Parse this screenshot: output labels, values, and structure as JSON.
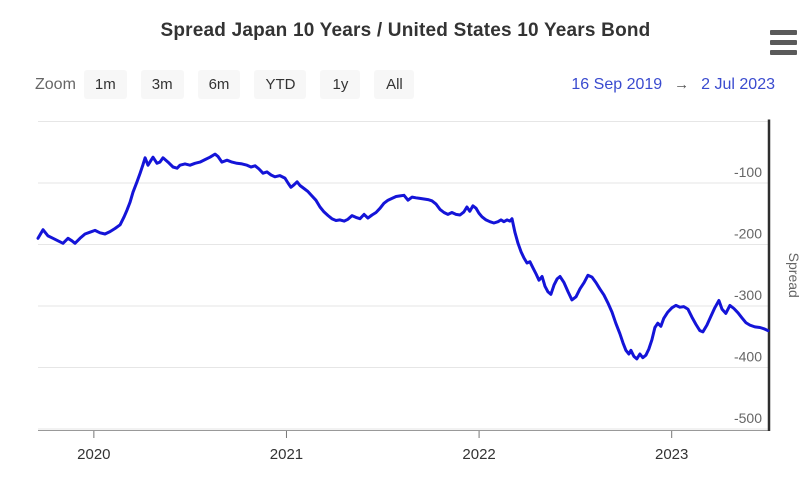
{
  "header": {
    "title": "Spread Japan 10 Years / United States 10 Years Bond"
  },
  "menu": {
    "icon": "hamburger-icon"
  },
  "controls": {
    "zoom_label": "Zoom",
    "buttons": [
      "1m",
      "3m",
      "6m",
      "YTD",
      "1y",
      "All"
    ],
    "range": {
      "from": "16 Sep 2019",
      "arrow": "→",
      "to": "2 Jul 2023"
    }
  },
  "colors": {
    "line": "#1414d8",
    "grid": "#e6e6e6",
    "y_axis_line": "#2e2e2e",
    "x_axis_line": "#999999",
    "tick": "#777777",
    "y_label": "#666666",
    "x_label": "#333333",
    "axis_title": "#666666",
    "date_link": "#3a4bcf"
  },
  "chart_data": {
    "type": "line",
    "title": "Spread Japan 10 Years / United States 10 Years Bond",
    "series_name": "Spread",
    "yaxis_title": "Spread",
    "xlabel": "",
    "ylabel": "Spread",
    "legend": false,
    "grid": true,
    "xlim": [
      2019.71,
      2023.5
    ],
    "ylim": [
      -500,
      0
    ],
    "ygrid": [
      0,
      -100,
      -200,
      -300,
      -400,
      -500
    ],
    "yticks": [
      {
        "value": -100,
        "label": "-100"
      },
      {
        "value": -200,
        "label": "-200"
      },
      {
        "value": -300,
        "label": "-300"
      },
      {
        "value": -400,
        "label": "-400"
      },
      {
        "value": -500,
        "label": "-500"
      }
    ],
    "xticks": [
      {
        "value": 2020,
        "label": "2020"
      },
      {
        "value": 2021,
        "label": "2021"
      },
      {
        "value": 2022,
        "label": "2022"
      },
      {
        "value": 2023,
        "label": "2023"
      }
    ],
    "points": [
      [
        2019.71,
        -190
      ],
      [
        2019.736,
        -176
      ],
      [
        2019.762,
        -186
      ],
      [
        2019.788,
        -190
      ],
      [
        2019.814,
        -194
      ],
      [
        2019.84,
        -198
      ],
      [
        2019.866,
        -190
      ],
      [
        2019.886,
        -194
      ],
      [
        2019.902,
        -198
      ],
      [
        2019.928,
        -190
      ],
      [
        2019.954,
        -183
      ],
      [
        2019.98,
        -180
      ],
      [
        2020.006,
        -177
      ],
      [
        2020.032,
        -181
      ],
      [
        2020.058,
        -183
      ],
      [
        2020.084,
        -179
      ],
      [
        2020.11,
        -174
      ],
      [
        2020.136,
        -168
      ],
      [
        2020.157,
        -155
      ],
      [
        2020.172,
        -144
      ],
      [
        2020.188,
        -131
      ],
      [
        2020.203,
        -115
      ],
      [
        2020.224,
        -98
      ],
      [
        2020.24,
        -84
      ],
      [
        2020.255,
        -70
      ],
      [
        2020.266,
        -59
      ],
      [
        2020.281,
        -71
      ],
      [
        2020.297,
        -63
      ],
      [
        2020.307,
        -58
      ],
      [
        2020.328,
        -68
      ],
      [
        2020.343,
        -66
      ],
      [
        2020.359,
        -59
      ],
      [
        2020.385,
        -66
      ],
      [
        2020.411,
        -74
      ],
      [
        2020.432,
        -76
      ],
      [
        2020.447,
        -71
      ],
      [
        2020.473,
        -69
      ],
      [
        2020.499,
        -71
      ],
      [
        2020.525,
        -68
      ],
      [
        2020.551,
        -66
      ],
      [
        2020.577,
        -62
      ],
      [
        2020.603,
        -58
      ],
      [
        2020.629,
        -53
      ],
      [
        2020.645,
        -57
      ],
      [
        2020.665,
        -66
      ],
      [
        2020.691,
        -63
      ],
      [
        2020.717,
        -66
      ],
      [
        2020.743,
        -68
      ],
      [
        2020.769,
        -69
      ],
      [
        2020.795,
        -71
      ],
      [
        2020.816,
        -74
      ],
      [
        2020.837,
        -72
      ],
      [
        2020.857,
        -77
      ],
      [
        2020.878,
        -84
      ],
      [
        2020.899,
        -82
      ],
      [
        2020.92,
        -87
      ],
      [
        2020.94,
        -90
      ],
      [
        2020.966,
        -88
      ],
      [
        2020.992,
        -92
      ],
      [
        2021.008,
        -100
      ],
      [
        2021.023,
        -107
      ],
      [
        2021.039,
        -103
      ],
      [
        2021.055,
        -98
      ],
      [
        2021.07,
        -104
      ],
      [
        2021.091,
        -109
      ],
      [
        2021.112,
        -114
      ],
      [
        2021.132,
        -121
      ],
      [
        2021.153,
        -128
      ],
      [
        2021.174,
        -139
      ],
      [
        2021.195,
        -147
      ],
      [
        2021.216,
        -153
      ],
      [
        2021.236,
        -158
      ],
      [
        2021.257,
        -161
      ],
      [
        2021.278,
        -160
      ],
      [
        2021.299,
        -162
      ],
      [
        2021.319,
        -159
      ],
      [
        2021.34,
        -153
      ],
      [
        2021.361,
        -156
      ],
      [
        2021.382,
        -158
      ],
      [
        2021.403,
        -151
      ],
      [
        2021.423,
        -157
      ],
      [
        2021.444,
        -152
      ],
      [
        2021.465,
        -148
      ],
      [
        2021.486,
        -141
      ],
      [
        2021.506,
        -133
      ],
      [
        2021.527,
        -128
      ],
      [
        2021.548,
        -125
      ],
      [
        2021.569,
        -122
      ],
      [
        2021.59,
        -121
      ],
      [
        2021.61,
        -120
      ],
      [
        2021.631,
        -128
      ],
      [
        2021.652,
        -123
      ],
      [
        2021.672,
        -124
      ],
      [
        2021.693,
        -125
      ],
      [
        2021.714,
        -126
      ],
      [
        2021.735,
        -127
      ],
      [
        2021.755,
        -129
      ],
      [
        2021.776,
        -134
      ],
      [
        2021.797,
        -143
      ],
      [
        2021.818,
        -148
      ],
      [
        2021.838,
        -151
      ],
      [
        2021.859,
        -148
      ],
      [
        2021.88,
        -151
      ],
      [
        2021.901,
        -152
      ],
      [
        2021.921,
        -147
      ],
      [
        2021.937,
        -139
      ],
      [
        2021.952,
        -146
      ],
      [
        2021.968,
        -137
      ],
      [
        2021.984,
        -141
      ],
      [
        2021.999,
        -149
      ],
      [
        2022.015,
        -155
      ],
      [
        2022.036,
        -160
      ],
      [
        2022.056,
        -163
      ],
      [
        2022.077,
        -165
      ],
      [
        2022.098,
        -163
      ],
      [
        2022.114,
        -160
      ],
      [
        2022.129,
        -163
      ],
      [
        2022.145,
        -160
      ],
      [
        2022.16,
        -162
      ],
      [
        2022.171,
        -158
      ],
      [
        2022.186,
        -180
      ],
      [
        2022.202,
        -198
      ],
      [
        2022.218,
        -212
      ],
      [
        2022.233,
        -222
      ],
      [
        2022.249,
        -230
      ],
      [
        2022.264,
        -228
      ],
      [
        2022.28,
        -238
      ],
      [
        2022.296,
        -248
      ],
      [
        2022.311,
        -258
      ],
      [
        2022.327,
        -252
      ],
      [
        2022.342,
        -268
      ],
      [
        2022.358,
        -277
      ],
      [
        2022.373,
        -281
      ],
      [
        2022.389,
        -266
      ],
      [
        2022.405,
        -256
      ],
      [
        2022.42,
        -252
      ],
      [
        2022.441,
        -262
      ],
      [
        2022.462,
        -277
      ],
      [
        2022.482,
        -290
      ],
      [
        2022.503,
        -285
      ],
      [
        2022.524,
        -272
      ],
      [
        2022.545,
        -262
      ],
      [
        2022.565,
        -250
      ],
      [
        2022.586,
        -253
      ],
      [
        2022.607,
        -262
      ],
      [
        2022.627,
        -272
      ],
      [
        2022.648,
        -282
      ],
      [
        2022.669,
        -295
      ],
      [
        2022.69,
        -310
      ],
      [
        2022.71,
        -328
      ],
      [
        2022.731,
        -345
      ],
      [
        2022.747,
        -360
      ],
      [
        2022.762,
        -372
      ],
      [
        2022.778,
        -378
      ],
      [
        2022.788,
        -372
      ],
      [
        2022.804,
        -382
      ],
      [
        2022.819,
        -386
      ],
      [
        2022.835,
        -378
      ],
      [
        2022.85,
        -384
      ],
      [
        2022.866,
        -380
      ],
      [
        2022.881,
        -370
      ],
      [
        2022.897,
        -355
      ],
      [
        2022.913,
        -335
      ],
      [
        2022.928,
        -328
      ],
      [
        2022.944,
        -333
      ],
      [
        2022.959,
        -320
      ],
      [
        2022.98,
        -310
      ],
      [
        2023.001,
        -303
      ],
      [
        2023.022,
        -299
      ],
      [
        2023.043,
        -302
      ],
      [
        2023.063,
        -301
      ],
      [
        2023.084,
        -305
      ],
      [
        2023.105,
        -318
      ],
      [
        2023.126,
        -330
      ],
      [
        2023.146,
        -340
      ],
      [
        2023.162,
        -342
      ],
      [
        2023.183,
        -331
      ],
      [
        2023.203,
        -317
      ],
      [
        2023.224,
        -303
      ],
      [
        2023.245,
        -291
      ],
      [
        2023.261,
        -305
      ],
      [
        2023.281,
        -312
      ],
      [
        2023.302,
        -299
      ],
      [
        2023.323,
        -304
      ],
      [
        2023.344,
        -311
      ],
      [
        2023.364,
        -319
      ],
      [
        2023.385,
        -327
      ],
      [
        2023.406,
        -331
      ],
      [
        2023.432,
        -334
      ],
      [
        2023.458,
        -335
      ],
      [
        2023.479,
        -337
      ],
      [
        2023.5,
        -340
      ]
    ]
  }
}
